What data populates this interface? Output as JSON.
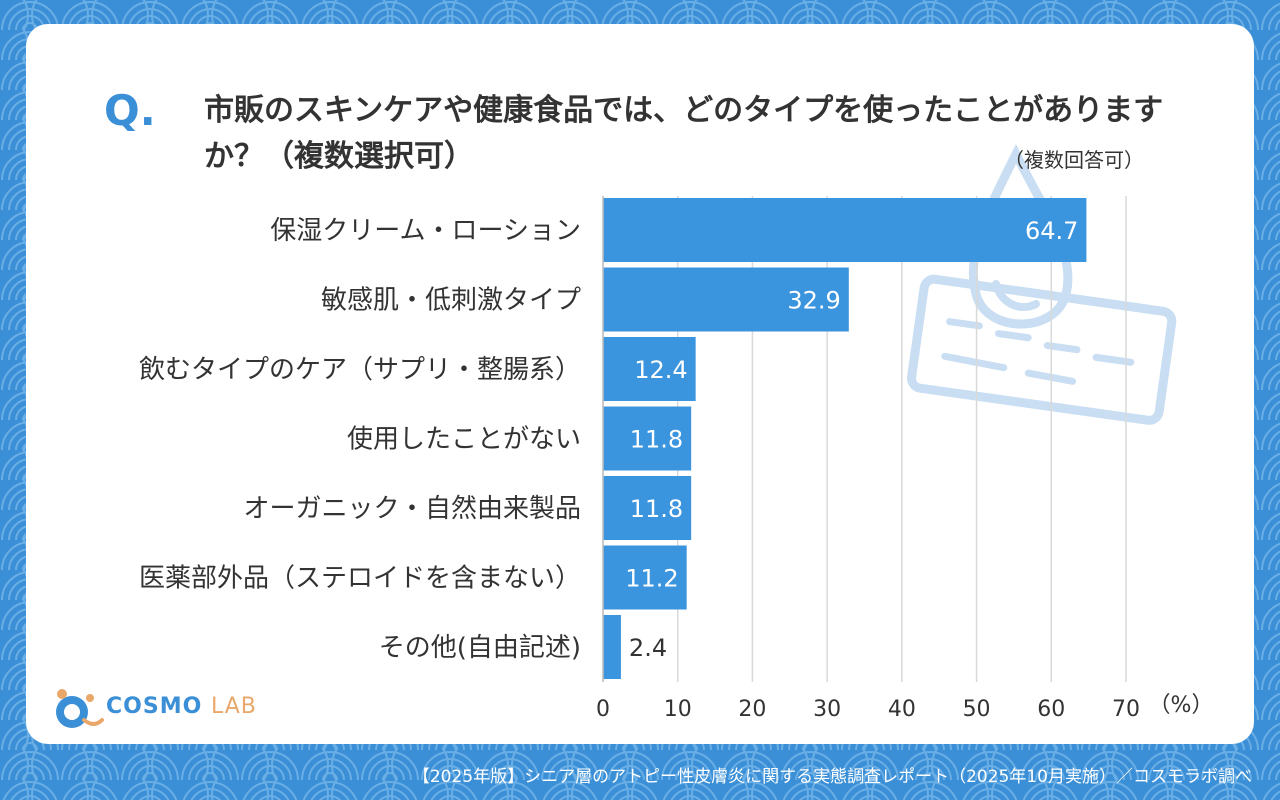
{
  "question": {
    "mark": "Q.",
    "text": "市販のスキンケアや健康食品では、どのタイプを使ったことがありますか？（複数選択可）"
  },
  "note": "（複数回答可）",
  "chart_data": {
    "type": "bar",
    "orientation": "horizontal",
    "categories": [
      "保湿クリーム・ローション",
      "敏感肌・低刺激タイプ",
      "飲むタイプのケア（サプリ・整腸系）",
      "使用したことがない",
      "オーガニック・自然由来製品",
      "医薬部外品（ステロイドを含まない）",
      "その他(自由記述)"
    ],
    "values": [
      64.7,
      32.9,
      12.4,
      11.8,
      11.8,
      11.2,
      2.4
    ],
    "value_labels": [
      "64.7",
      "32.9",
      "12.4",
      "11.8",
      "11.8",
      "11.2",
      "2.4"
    ],
    "xlim": [
      0,
      70
    ],
    "xticks": [
      "0",
      "10",
      "20",
      "30",
      "40",
      "50",
      "60",
      "70"
    ],
    "xunit": "（%）",
    "grid": true,
    "colors": {
      "bar": "#3b94de",
      "accent": "#3b8fd6"
    }
  },
  "logo": {
    "name": "COSMO",
    "suffix": "LAB"
  },
  "footer": "【2025年版】シニア層のアトピー性皮膚炎に関する実態調査レポート（2025年10月実施）／コスモラボ調べ"
}
